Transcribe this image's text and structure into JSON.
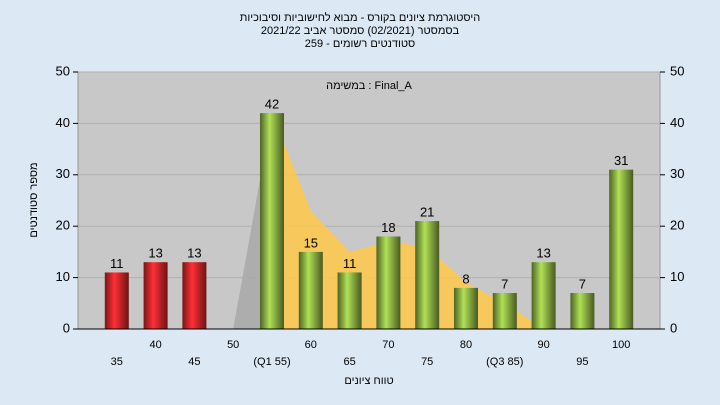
{
  "chart_data": {
    "type": "bar",
    "title_lines": [
      "היסטוגרמת ציונים בקורס - מבוא לחישוביות וסיבוכיות",
      "בסמסטר  (02/2021)  סמסטר אביב 2021/22",
      "סטודנטים רשומים - 259"
    ],
    "annotation": "במשימה : Final_A",
    "x_label": "טווח ציונים",
    "y_label": "מספר סטודנטים",
    "categories": [
      "35",
      "40",
      "45",
      "50",
      "(Q1 55)",
      "60",
      "65",
      "70",
      "75",
      "80",
      "(Q3 85)",
      "90",
      "95",
      "100"
    ],
    "values": [
      11,
      13,
      13,
      null,
      42,
      15,
      11,
      18,
      21,
      8,
      7,
      13,
      7,
      31
    ],
    "colors": [
      "#d8262a",
      "#d8262a",
      "#d8262a",
      "#8db444",
      "#8db444",
      "#8db444",
      "#8db444",
      "#8db444",
      "#8db444",
      "#8db444",
      "#8db444",
      "#8db444",
      "#8db444",
      "#8db444"
    ],
    "areas": [
      {
        "color": "#a8a8a8",
        "values": [
          null,
          null,
          null,
          0,
          42,
          null,
          null,
          null,
          null,
          null,
          null,
          null,
          null,
          null
        ]
      },
      {
        "color": "#ffc94a",
        "values": [
          null,
          null,
          null,
          null,
          42,
          23,
          15,
          17,
          16,
          9,
          5,
          0,
          null,
          null
        ]
      }
    ],
    "ylim": [
      0,
      50
    ],
    "yticks": [
      0,
      10,
      20,
      30,
      40,
      50
    ],
    "y2lim": [
      0,
      50
    ],
    "y2ticks": [
      0,
      10,
      20,
      30,
      40,
      50
    ],
    "grid": true
  }
}
